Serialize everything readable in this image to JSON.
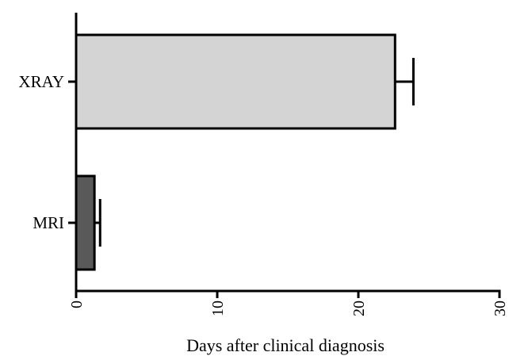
{
  "chart_data": {
    "type": "bar",
    "orientation": "horizontal",
    "categories": [
      "XRAY",
      "MRI"
    ],
    "series": [
      {
        "values": [
          22.6,
          1.3
        ],
        "errors": [
          1.3,
          0.4
        ],
        "colors": [
          "#d4d4d4",
          "#595959"
        ]
      }
    ],
    "xlabel": "Days after clinical diagnosis",
    "ylabel": "",
    "xlim": [
      0,
      30
    ],
    "xticks": [
      "0",
      "10",
      "20",
      "30"
    ],
    "grid": false,
    "legend": "none"
  }
}
